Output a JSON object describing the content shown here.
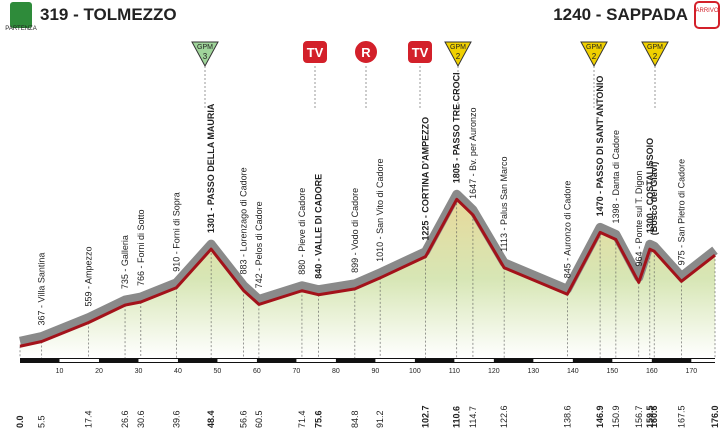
{
  "chart_data": {
    "type": "area",
    "start": "319 - TOLMEZZO",
    "start_badge": "PARTENZA",
    "finish": "1240 - SAPPADA",
    "finish_badge": "ARRIVO",
    "x": [
      0,
      5.5,
      17.4,
      26.6,
      30.6,
      39.6,
      48.4,
      56.6,
      60.5,
      71.4,
      75.6,
      84.8,
      91.2,
      102.7,
      110.6,
      114.7,
      122.6,
      138.6,
      146.9,
      150.9,
      156.7,
      159.5,
      160.6,
      167.5,
      176.0
    ],
    "x_labels": [
      "0.0",
      "5.5",
      "17.4",
      "26.6",
      "30.6",
      "39.6",
      "48.4",
      "56.6",
      "60.5",
      "71.4",
      "75.6",
      "84.8",
      "91.2",
      "102.7",
      "110.6",
      "114.7",
      "122.6",
      "138.6",
      "146.9",
      "150.9",
      "156.7",
      "159.5",
      "160.6",
      "167.5",
      "176.0"
    ],
    "values": [
      319,
      367,
      559,
      735,
      766,
      910,
      1301,
      883,
      742,
      880,
      840,
      899,
      1010,
      1225,
      1805,
      1647,
      1113,
      845,
      1470,
      1398,
      964,
      1300,
      1280,
      975,
      1240
    ],
    "value_labels": [
      null,
      "367 - Villa Santina",
      "559 - Ampezzo",
      "735 - Galleria",
      "766 - Forni di Sotto",
      "910 - Forni di Sopra",
      "1301 - PASSO DELLA MAURIA",
      "883 - Lorenzago di Cadore",
      "742 - Pelos di Cadore",
      "880 - Pieve di Cadore",
      "840 - VALLE DI CADORE",
      "899 - Vodo di Cadore",
      "1010 - San Vito di Cadore",
      "1225 - CORTINA D'AMPEZZO",
      "1805 - PASSO TRE CROCI",
      "1647 - Bv. per Auronzo",
      "1113 - Palus San Marco",
      "845 - Auronzo di Cadore",
      "1470 - PASSO DI SANT'ANTONIO",
      "1398 - Danta di Cadore",
      "964 - Ponte sul T. Digon",
      "1300 - COSTALISSOIO",
      "(Bosco dei Giavi)",
      "975 - San Pietro di Cadore",
      null
    ],
    "xlim": [
      0,
      176
    ],
    "xticks": [
      10,
      20,
      30,
      40,
      50,
      60,
      70,
      80,
      90,
      100,
      110,
      120,
      130,
      140,
      150,
      160,
      170
    ],
    "ylim": [
      200,
      2000
    ],
    "icons": [
      {
        "text": "GPM",
        "sub": "3"
      },
      {
        "text": "TV"
      },
      {
        "text": "R"
      },
      {
        "text": "TV"
      },
      {
        "text": "GPM",
        "sub": "2"
      },
      {
        "text": "GPM",
        "sub": "2"
      },
      {
        "text": "GPM",
        "sub": "2"
      }
    ]
  }
}
